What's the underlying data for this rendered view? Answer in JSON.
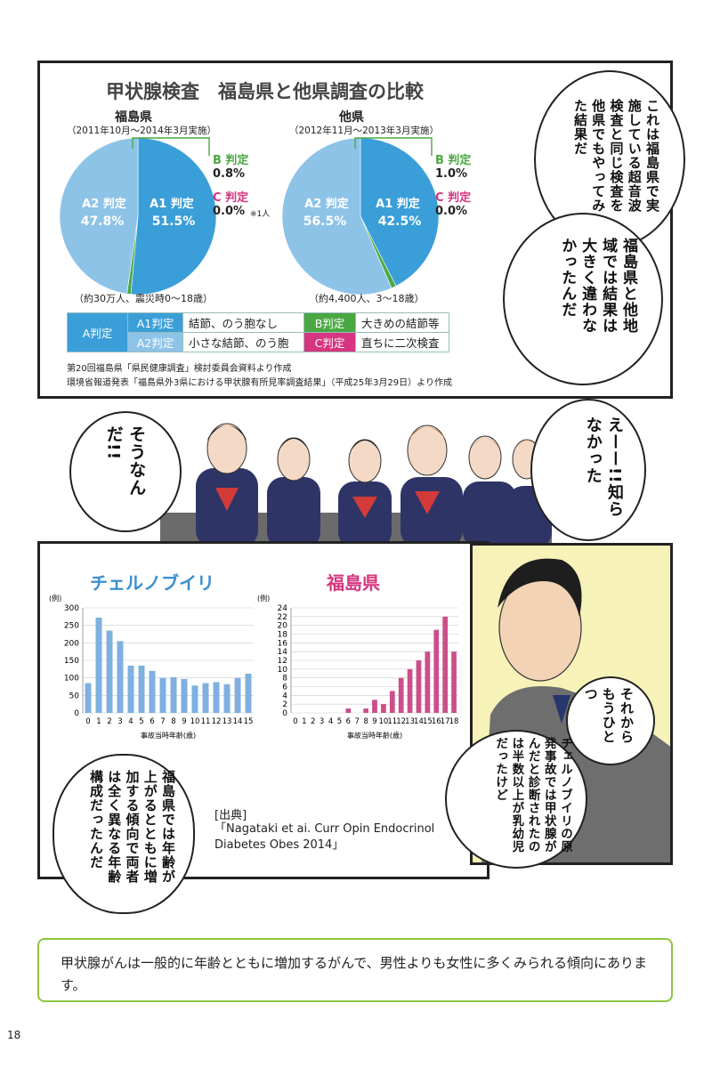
{
  "page_number": "18",
  "panel1": {
    "title": "甲状腺検査　福島県と他県調査の比較",
    "fukushima": {
      "name": "福島県",
      "period": "（2011年10月〜2014年3月実施）",
      "population": "（約30万人、震災時0〜18歳）",
      "a2_label": "A2 判定",
      "a2_value": "47.8%",
      "a1_label": "A1 判定",
      "a1_value": "51.5%",
      "b_label": "B 判定",
      "b_value": "0.8%",
      "c_label": "C 判定",
      "c_value": "0.0%",
      "c_note": "※1人"
    },
    "other": {
      "name": "他県",
      "period": "（2012年11月〜2013年3月実施）",
      "population": "（約4,400人、3〜18歳）",
      "a2_label": "A2 判定",
      "a2_value": "56.5%",
      "a1_label": "A1 判定",
      "a1_value": "42.5%",
      "b_label": "B 判定",
      "b_value": "1.0%",
      "c_label": "C 判定",
      "c_value": "0.0%"
    },
    "legend": {
      "a": "A判定",
      "a1": "A1判定",
      "a1_desc": "結節、のう胞なし",
      "a2": "A2判定",
      "a2_desc": "小さな結節、のう胞",
      "b": "B判定",
      "b_desc": "大きめの結節等",
      "c": "C判定",
      "c_desc": "直ちに二次検査"
    },
    "source1": "第20回福島県「県民健康調査」検討委員会資料より作成",
    "source2": "環境省報道発表「福島県外3県における甲状腺有所見率調査結果」（平成25年3月29日）より作成",
    "bubble_text": "これは福島県で実施している超音波検査と同じ検査を他県でもやってみた結果だ",
    "bubble_text2": "福島県と他地域では結果は大きく違わなかったんだ"
  },
  "panel2": {
    "left_bubble": "そうなんだ!!",
    "right_bubble": "えーー!!知らなかった"
  },
  "panel3": {
    "chernobyl_title": "チェルノブイリ",
    "fukushima_title": "福島県",
    "unit": "(例)",
    "xlabel": "事故当時年齢(歳)",
    "source_head": "[出典]",
    "source_body": "「Nagataki et ai. Curr Opin Endocrinol Diabetes Obes 2014」",
    "bubble_left": "福島県では年齢が上がるとともに増加する傾向で両者は全く異なる年齢構成だったんだ"
  },
  "panel4": {
    "bubble_small": "それからもうひとつ",
    "bubble_big": "チェルノブイリの原発事故では甲状腺がんだと診断されたのは半数以上が乳幼児だったけど"
  },
  "footnote": "甲状腺がんは一般的に年齢とともに増加するがんで、男性よりも女性に多くみられる傾向にあります。",
  "colors": {
    "pie_dark": "#3a9fd8",
    "pie_light": "#8ec3e8",
    "green": "#4aa843",
    "pink": "#d6357f",
    "blue_bar": "#7fb0de",
    "pink_bar": "#cc4f8a",
    "footnote_border": "#8cc63f"
  },
  "chart_data": [
    {
      "type": "pie",
      "title": "福島県",
      "labels": [
        "A1 判定",
        "A2 判定",
        "B 判定",
        "C 判定"
      ],
      "values": [
        51.5,
        47.8,
        0.8,
        0.0
      ]
    },
    {
      "type": "pie",
      "title": "他県",
      "labels": [
        "A1 判定",
        "A2 判定",
        "B 判定",
        "C 判定"
      ],
      "values": [
        42.5,
        56.5,
        1.0,
        0.0
      ]
    },
    {
      "type": "bar",
      "title": "チェルノブイリ",
      "xlabel": "事故当時年齢(歳)",
      "ylabel": "(例)",
      "categories": [
        "0",
        "1",
        "2",
        "3",
        "4",
        "5",
        "6",
        "7",
        "8",
        "9",
        "10",
        "11",
        "12",
        "13",
        "14",
        "15"
      ],
      "values": [
        85,
        272,
        235,
        205,
        135,
        135,
        120,
        100,
        102,
        97,
        78,
        85,
        88,
        82,
        100,
        112
      ],
      "ylim": [
        0,
        300
      ],
      "yticks": [
        0,
        50,
        100,
        150,
        200,
        250,
        300
      ]
    },
    {
      "type": "bar",
      "title": "福島県",
      "xlabel": "事故当時年齢(歳)",
      "ylabel": "(例)",
      "categories": [
        "0",
        "1",
        "2",
        "3",
        "4",
        "5",
        "6",
        "7",
        "8",
        "9",
        "10",
        "11",
        "12",
        "13",
        "14",
        "15",
        "16",
        "17",
        "18"
      ],
      "values": [
        0,
        0,
        0,
        0,
        0,
        0,
        1,
        0,
        1,
        3,
        2,
        5,
        8,
        10,
        12,
        14,
        19,
        22,
        14
      ],
      "ylim": [
        0,
        24
      ],
      "yticks": [
        0,
        2,
        4,
        6,
        8,
        10,
        12,
        14,
        16,
        18,
        20,
        22,
        24
      ]
    }
  ]
}
